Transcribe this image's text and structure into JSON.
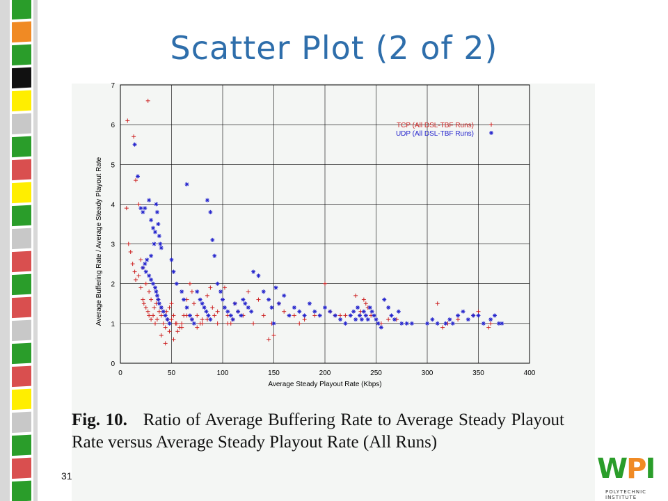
{
  "slide": {
    "title": "Scatter Plot (2 of 2)",
    "page_number": "31",
    "caption_label": "Fig. 10.",
    "caption_text": "Ratio of Average Buffering Rate to Average Steady Playout Rate versus Average Steady Playout Rate (All Runs)",
    "logo_text": "WPI",
    "logo_subtext": "POLYTECHNIC INSTITUTE"
  },
  "colors": {
    "title": "#2e6eab",
    "tcp": "#cc2222",
    "udp": "#2222cc",
    "left_bar": [
      "#2a9d2a",
      "#f08a24",
      "#ffee00",
      "#c8c8c8",
      "#d94f4f",
      "#111111"
    ]
  },
  "chart_data": {
    "type": "scatter",
    "xlabel": "Average Steady Playout Rate (Kbps)",
    "ylabel": "Average Buffering Rate / Average Steady Playout Rate",
    "xlim": [
      0,
      400
    ],
    "ylim": [
      0,
      7
    ],
    "xticks": [
      "0",
      "50",
      "100",
      "150",
      "200",
      "250",
      "300",
      "350",
      "400"
    ],
    "yticks": [
      "0",
      "1",
      "2",
      "3",
      "4",
      "5",
      "6",
      "7"
    ],
    "grid": true,
    "legend_position": "top-right",
    "series": [
      {
        "name": "TCP (All DSL-TBF Runs)",
        "marker": "+",
        "points": [
          [
            7,
            6.1
          ],
          [
            27,
            6.6
          ],
          [
            13,
            5.7
          ],
          [
            15,
            4.6
          ],
          [
            6,
            3.9
          ],
          [
            18,
            4.0
          ],
          [
            8,
            3.0
          ],
          [
            10,
            2.8
          ],
          [
            12,
            2.5
          ],
          [
            14,
            2.3
          ],
          [
            15,
            2.1
          ],
          [
            18,
            2.2
          ],
          [
            20,
            1.9
          ],
          [
            22,
            1.6
          ],
          [
            23,
            1.5
          ],
          [
            25,
            1.4
          ],
          [
            27,
            1.3
          ],
          [
            28,
            1.2
          ],
          [
            30,
            1.1
          ],
          [
            32,
            1.2
          ],
          [
            34,
            1.0
          ],
          [
            36,
            1.1
          ],
          [
            38,
            1.3
          ],
          [
            40,
            1.2
          ],
          [
            42,
            1.0
          ],
          [
            44,
            0.9
          ],
          [
            46,
            1.1
          ],
          [
            48,
            1.4
          ],
          [
            50,
            1.5
          ],
          [
            52,
            1.2
          ],
          [
            54,
            1.0
          ],
          [
            56,
            0.8
          ],
          [
            58,
            0.9
          ],
          [
            60,
            1.0
          ],
          [
            62,
            1.2
          ],
          [
            65,
            1.6
          ],
          [
            68,
            2.0
          ],
          [
            70,
            1.8
          ],
          [
            72,
            1.5
          ],
          [
            75,
            1.2
          ],
          [
            78,
            1.0
          ],
          [
            80,
            1.1
          ],
          [
            85,
            1.7
          ],
          [
            88,
            1.9
          ],
          [
            90,
            1.4
          ],
          [
            92,
            1.2
          ],
          [
            95,
            1.0
          ],
          [
            100,
            1.6
          ],
          [
            102,
            1.9
          ],
          [
            105,
            1.2
          ],
          [
            108,
            1.0
          ],
          [
            112,
            1.5
          ],
          [
            115,
            1.3
          ],
          [
            120,
            1.2
          ],
          [
            125,
            1.8
          ],
          [
            130,
            1.0
          ],
          [
            135,
            1.6
          ],
          [
            140,
            1.2
          ],
          [
            145,
            0.6
          ],
          [
            148,
            1.0
          ],
          [
            150,
            0.7
          ],
          [
            155,
            1.5
          ],
          [
            160,
            1.3
          ],
          [
            170,
            1.2
          ],
          [
            175,
            1.0
          ],
          [
            180,
            1.1
          ],
          [
            190,
            1.2
          ],
          [
            200,
            2.0
          ],
          [
            205,
            1.3
          ],
          [
            210,
            1.2
          ],
          [
            215,
            1.2
          ],
          [
            220,
            1.2
          ],
          [
            230,
            1.7
          ],
          [
            235,
            1.3
          ],
          [
            238,
            1.6
          ],
          [
            240,
            1.5
          ],
          [
            242,
            1.4
          ],
          [
            245,
            1.2
          ],
          [
            255,
            1.0
          ],
          [
            262,
            1.1
          ],
          [
            270,
            1.1
          ],
          [
            310,
            1.5
          ],
          [
            315,
            0.9
          ],
          [
            320,
            1.0
          ],
          [
            330,
            1.1
          ],
          [
            345,
            1.2
          ],
          [
            350,
            1.3
          ],
          [
            360,
            0.9
          ],
          [
            362,
            1.0
          ],
          [
            20,
            2.6
          ],
          [
            22,
            2.4
          ],
          [
            25,
            2.0
          ],
          [
            28,
            1.8
          ],
          [
            30,
            1.6
          ],
          [
            35,
            1.5
          ],
          [
            40,
            1.4
          ],
          [
            45,
            1.3
          ],
          [
            50,
            1.1
          ],
          [
            55,
            1.0
          ],
          [
            60,
            0.9
          ],
          [
            65,
            1.2
          ],
          [
            70,
            1.1
          ],
          [
            75,
            0.9
          ],
          [
            80,
            1.0
          ],
          [
            40,
            0.7
          ],
          [
            44,
            0.5
          ],
          [
            48,
            0.8
          ],
          [
            52,
            0.6
          ],
          [
            33,
            1.4
          ],
          [
            37,
            1.6
          ],
          [
            85,
            1.1
          ],
          [
            95,
            1.3
          ],
          [
            105,
            1.0
          ],
          [
            110,
            1.1
          ]
        ]
      },
      {
        "name": "UDP (All DSL-TBF Runs)",
        "marker": "*",
        "points": [
          [
            14,
            5.5
          ],
          [
            17,
            4.7
          ],
          [
            65,
            4.5
          ],
          [
            85,
            4.1
          ],
          [
            88,
            3.8
          ],
          [
            20,
            3.9
          ],
          [
            22,
            3.8
          ],
          [
            24,
            3.9
          ],
          [
            28,
            4.1
          ],
          [
            30,
            3.6
          ],
          [
            32,
            3.4
          ],
          [
            35,
            4.0
          ],
          [
            36,
            3.8
          ],
          [
            37,
            3.5
          ],
          [
            38,
            3.2
          ],
          [
            39,
            3.0
          ],
          [
            40,
            2.9
          ],
          [
            34,
            3.3
          ],
          [
            33,
            3.0
          ],
          [
            30,
            2.7
          ],
          [
            26,
            2.6
          ],
          [
            24,
            2.5
          ],
          [
            22,
            2.4
          ],
          [
            25,
            2.3
          ],
          [
            28,
            2.2
          ],
          [
            30,
            2.1
          ],
          [
            32,
            2.0
          ],
          [
            34,
            1.9
          ],
          [
            35,
            1.8
          ],
          [
            36,
            1.7
          ],
          [
            37,
            1.6
          ],
          [
            38,
            1.5
          ],
          [
            40,
            1.4
          ],
          [
            42,
            1.3
          ],
          [
            44,
            1.2
          ],
          [
            46,
            1.1
          ],
          [
            48,
            1.0
          ],
          [
            50,
            2.6
          ],
          [
            52,
            2.3
          ],
          [
            55,
            2.0
          ],
          [
            60,
            1.8
          ],
          [
            62,
            1.6
          ],
          [
            65,
            1.4
          ],
          [
            68,
            1.2
          ],
          [
            70,
            1.1
          ],
          [
            72,
            1.0
          ],
          [
            75,
            1.8
          ],
          [
            78,
            1.6
          ],
          [
            80,
            1.5
          ],
          [
            82,
            1.4
          ],
          [
            84,
            1.3
          ],
          [
            86,
            1.2
          ],
          [
            88,
            1.1
          ],
          [
            90,
            3.1
          ],
          [
            92,
            2.7
          ],
          [
            95,
            2.0
          ],
          [
            98,
            1.8
          ],
          [
            100,
            1.6
          ],
          [
            102,
            1.4
          ],
          [
            105,
            1.3
          ],
          [
            108,
            1.2
          ],
          [
            110,
            1.1
          ],
          [
            112,
            1.5
          ],
          [
            115,
            1.3
          ],
          [
            118,
            1.2
          ],
          [
            120,
            1.6
          ],
          [
            122,
            1.5
          ],
          [
            125,
            1.4
          ],
          [
            128,
            1.3
          ],
          [
            130,
            2.3
          ],
          [
            135,
            2.2
          ],
          [
            140,
            1.8
          ],
          [
            145,
            1.6
          ],
          [
            148,
            1.4
          ],
          [
            150,
            1.0
          ],
          [
            152,
            1.9
          ],
          [
            155,
            1.5
          ],
          [
            160,
            1.7
          ],
          [
            165,
            1.2
          ],
          [
            170,
            1.4
          ],
          [
            175,
            1.3
          ],
          [
            180,
            1.2
          ],
          [
            185,
            1.5
          ],
          [
            190,
            1.3
          ],
          [
            195,
            1.2
          ],
          [
            200,
            1.4
          ],
          [
            205,
            1.3
          ],
          [
            210,
            1.2
          ],
          [
            215,
            1.1
          ],
          [
            220,
            1.0
          ],
          [
            225,
            1.2
          ],
          [
            228,
            1.3
          ],
          [
            230,
            1.1
          ],
          [
            232,
            1.4
          ],
          [
            234,
            1.2
          ],
          [
            236,
            1.1
          ],
          [
            238,
            1.3
          ],
          [
            240,
            1.2
          ],
          [
            242,
            1.1
          ],
          [
            244,
            1.4
          ],
          [
            246,
            1.3
          ],
          [
            248,
            1.2
          ],
          [
            250,
            1.1
          ],
          [
            252,
            1.0
          ],
          [
            255,
            0.9
          ],
          [
            258,
            1.6
          ],
          [
            262,
            1.4
          ],
          [
            265,
            1.2
          ],
          [
            268,
            1.1
          ],
          [
            272,
            1.3
          ],
          [
            275,
            1.0
          ],
          [
            280,
            1.0
          ],
          [
            285,
            1.0
          ],
          [
            300,
            1.0
          ],
          [
            305,
            1.1
          ],
          [
            310,
            1.0
          ],
          [
            318,
            1.0
          ],
          [
            322,
            1.1
          ],
          [
            325,
            1.0
          ],
          [
            330,
            1.2
          ],
          [
            335,
            1.3
          ],
          [
            340,
            1.1
          ],
          [
            345,
            1.2
          ],
          [
            350,
            1.2
          ],
          [
            355,
            1.0
          ],
          [
            362,
            1.1
          ],
          [
            366,
            1.2
          ],
          [
            370,
            1.0
          ],
          [
            373,
            1.0
          ]
        ]
      }
    ]
  }
}
